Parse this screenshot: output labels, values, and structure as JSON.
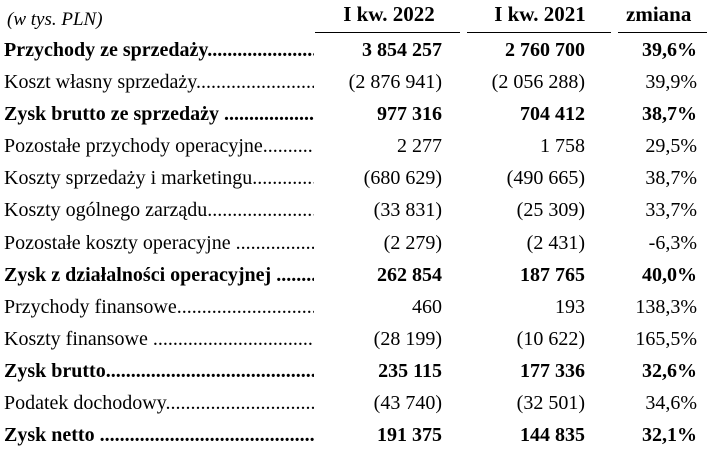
{
  "header": {
    "unit": "(w tys. PLN)",
    "col1": "I kw. 2022",
    "col2": "I kw. 2021",
    "col3": "zmiana"
  },
  "rows": [
    {
      "label": "Przychody ze sprzedaży",
      "v2022": "3 854 257",
      "v2021": "2 760 700",
      "change": "39,6%",
      "bold": true
    },
    {
      "label": "Koszt własny sprzedaży",
      "v2022": "(2 876 941)",
      "v2021": "(2 056 288)",
      "change": "39,9%",
      "bold": false
    },
    {
      "label": "Zysk brutto ze sprzedaży ",
      "v2022": "977 316",
      "v2021": "704 412",
      "change": "38,7%",
      "bold": true
    },
    {
      "label": "Pozostałe przychody operacyjne",
      "v2022": "2 277",
      "v2021": "1 758",
      "change": "29,5%",
      "bold": false
    },
    {
      "label": "Koszty sprzedaży i marketingu",
      "v2022": "(680 629)",
      "v2021": "(490 665)",
      "change": "38,7%",
      "bold": false
    },
    {
      "label": "Koszty ogólnego zarządu",
      "v2022": "(33 831)",
      "v2021": "(25 309)",
      "change": "33,7%",
      "bold": false
    },
    {
      "label": "Pozostałe koszty operacyjne ",
      "v2022": "(2 279)",
      "v2021": "(2 431)",
      "change": "-6,3%",
      "bold": false
    },
    {
      "label": "Zysk z działalności operacyjnej ",
      "v2022": "262 854",
      "v2021": "187 765",
      "change": "40,0%",
      "bold": true
    },
    {
      "label": "Przychody finansowe",
      "v2022": "460",
      "v2021": "193",
      "change": "138,3%",
      "bold": false
    },
    {
      "label": "Koszty finansowe ",
      "v2022": "(28 199)",
      "v2021": "(10 622)",
      "change": "165,5%",
      "bold": false
    },
    {
      "label": "Zysk brutto",
      "v2022": "235 115",
      "v2021": "177 336",
      "change": "32,6%",
      "bold": true
    },
    {
      "label": "Podatek dochodowy",
      "v2022": "(43 740)",
      "v2021": "(32 501)",
      "change": "34,6%",
      "bold": false
    },
    {
      "label": "Zysk netto ",
      "v2022": "191 375",
      "v2021": "144 835",
      "change": "32,1%",
      "bold": true
    }
  ]
}
